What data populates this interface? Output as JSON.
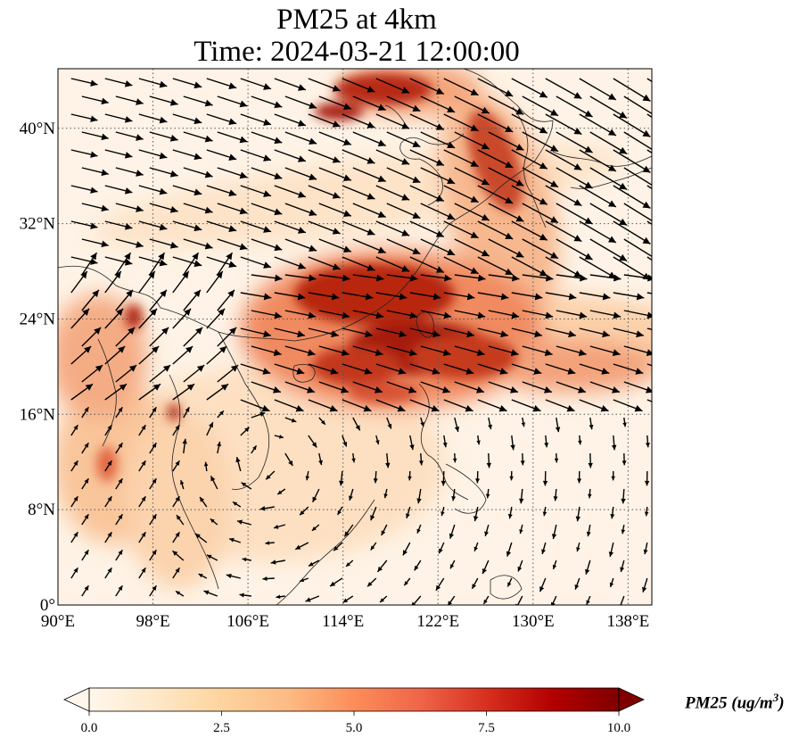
{
  "title": {
    "line1": "PM25 at 4km",
    "line2": "Time: 2024-03-21 12:00:00"
  },
  "map": {
    "extent": {
      "lon": [
        90,
        140
      ],
      "lat": [
        0,
        45
      ]
    },
    "lon_ticks": [
      {
        "value": 90,
        "label": "90°E"
      },
      {
        "value": 98,
        "label": "98°E"
      },
      {
        "value": 106,
        "label": "106°E"
      },
      {
        "value": 114,
        "label": "114°E"
      },
      {
        "value": 122,
        "label": "122°E"
      },
      {
        "value": 130,
        "label": "130°E"
      },
      {
        "value": 138,
        "label": "138°E"
      }
    ],
    "lat_ticks": [
      {
        "value": 0,
        "label": "0°"
      },
      {
        "value": 8,
        "label": "8°N"
      },
      {
        "value": 16,
        "label": "16°N"
      },
      {
        "value": 24,
        "label": "24°N"
      },
      {
        "value": 32,
        "label": "32°N"
      },
      {
        "value": 40,
        "label": "40°N"
      }
    ],
    "gridlines": true,
    "wind_vectors": true,
    "coastlines": true
  },
  "colorbar": {
    "label": "PM25 (ug/m",
    "label_sup": "3",
    "label_close": ")",
    "colormap": "OrRd",
    "range": [
      0,
      10
    ],
    "extend": "both",
    "ticks": [
      "0.0",
      "2.5",
      "5.0",
      "7.5",
      "10.0"
    ],
    "colors": [
      "#fff7ec",
      "#fee8c8",
      "#fdd49e",
      "#fdbb84",
      "#fc8d59",
      "#ef6548",
      "#d7301f",
      "#b30000",
      "#7f0000"
    ]
  }
}
